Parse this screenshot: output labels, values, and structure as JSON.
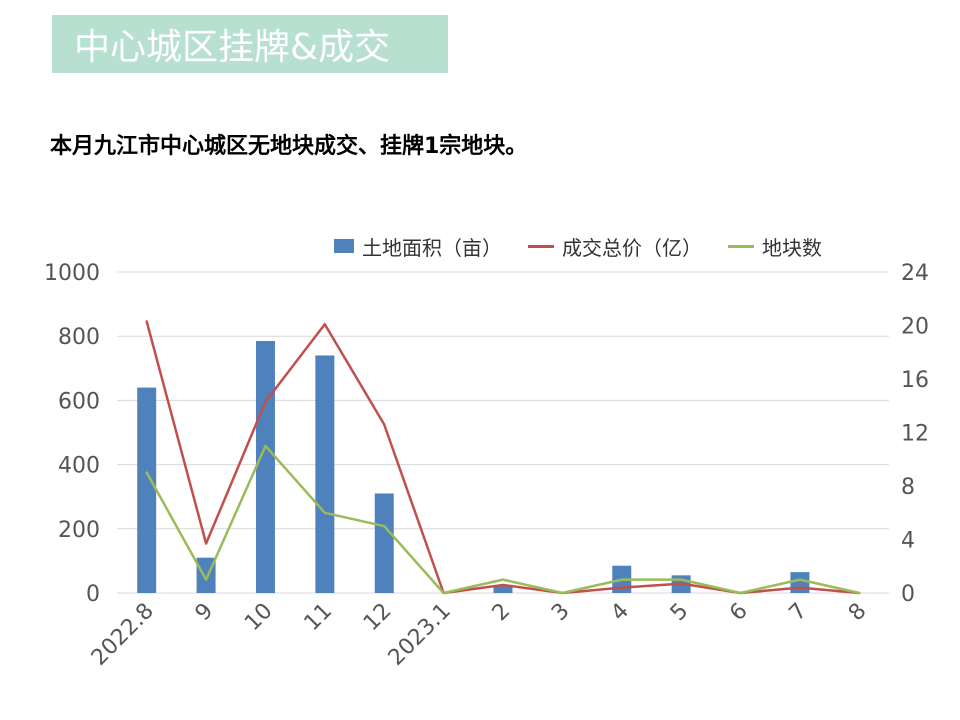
{
  "header": {
    "title": "中心城区挂牌&成交",
    "subtitle": "本月九江市中心城区无地块成交、挂牌1宗地块。"
  },
  "colors": {
    "banner": "#b8e0d0",
    "bar": "#4f81bd",
    "line_price": "#c0504d",
    "line_count": "#9bbb59",
    "grid": "#d9d9d9"
  },
  "chart_data": {
    "type": "bar",
    "categories": [
      "2022.8",
      "9",
      "10",
      "11",
      "12",
      "2023.1",
      "2",
      "3",
      "4",
      "5",
      "6",
      "7",
      "8"
    ],
    "left_ticks": [
      "0",
      "200",
      "400",
      "600",
      "800",
      "1000"
    ],
    "right_ticks": [
      "0",
      "4",
      "8",
      "12",
      "16",
      "20",
      "24"
    ],
    "ylim_left": [
      0,
      1000
    ],
    "ylim_right": [
      0,
      24
    ],
    "grid": true,
    "legend_position": "top-right",
    "series": [
      {
        "name": "土地面积（亩）",
        "type": "bar",
        "axis": "left",
        "values": [
          640,
          110,
          785,
          740,
          310,
          0,
          25,
          0,
          85,
          55,
          0,
          65,
          0
        ]
      },
      {
        "name": "成交总价（亿）",
        "type": "line",
        "axis": "right",
        "values": [
          20.3,
          3.7,
          14.3,
          20.1,
          12.6,
          0,
          0.6,
          0,
          0.4,
          0.7,
          0,
          0.4,
          0
        ]
      },
      {
        "name": "地块数",
        "type": "line",
        "axis": "right",
        "values": [
          9,
          1,
          11,
          6,
          5,
          0,
          1,
          0,
          1,
          1,
          0,
          1,
          0
        ]
      }
    ]
  }
}
